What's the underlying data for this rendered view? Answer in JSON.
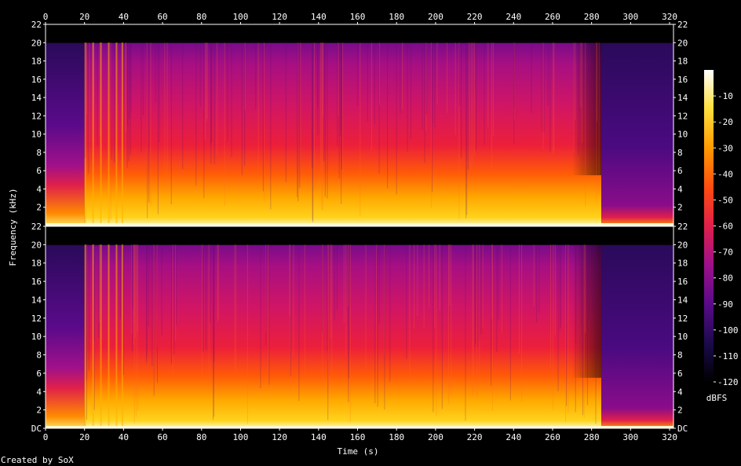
{
  "chart_data": {
    "type": "heatmap",
    "title": "",
    "xlabel": "Time (s)",
    "ylabel": "Frequency (kHz)",
    "xlim": [
      0,
      322
    ],
    "ylim_khz": [
      0,
      22
    ],
    "x_ticks": [
      0,
      20,
      40,
      60,
      80,
      100,
      120,
      140,
      160,
      180,
      200,
      220,
      240,
      260,
      280,
      300,
      320
    ],
    "y_tick_labels_top_channel": [
      "2",
      "4",
      "6",
      "8",
      "10",
      "12",
      "14",
      "16",
      "18",
      "20",
      "22"
    ],
    "y_tick_labels_bottom_channel": [
      "DC",
      "2",
      "4",
      "6",
      "8",
      "10",
      "12",
      "14",
      "16",
      "18",
      "20",
      "22"
    ],
    "colorbar": {
      "label": "dBFS",
      "ticks": [
        "-10",
        "-20",
        "-30",
        "-40",
        "-50",
        "-60",
        "-70",
        "-80",
        "-90",
        "-100",
        "-110",
        "-120"
      ],
      "range_dbfs": [
        -120,
        0
      ]
    },
    "channels": 2,
    "content_bandwidth_khz": 20,
    "segments_s": [
      {
        "start": 0,
        "end": 20,
        "note": "sparse low energy, narrow bright band below 6 kHz"
      },
      {
        "start": 20,
        "end": 40,
        "note": "onset with periodic transients"
      },
      {
        "start": 40,
        "end": 270,
        "note": "full-band dense energy"
      },
      {
        "start": 270,
        "end": 285,
        "note": "high-frequency rolloff"
      },
      {
        "start": 285,
        "end": 322,
        "note": "fade-out, energy mostly below 2 kHz"
      }
    ],
    "footer": "Created by SoX"
  },
  "colors": {
    "background": "#000000",
    "axis": "#ffffff",
    "palette": [
      "#000000",
      "#1a0a4a",
      "#5a0a8a",
      "#a0108a",
      "#e0204a",
      "#ff4a10",
      "#ff9a00",
      "#ffe040",
      "#ffffff"
    ]
  }
}
